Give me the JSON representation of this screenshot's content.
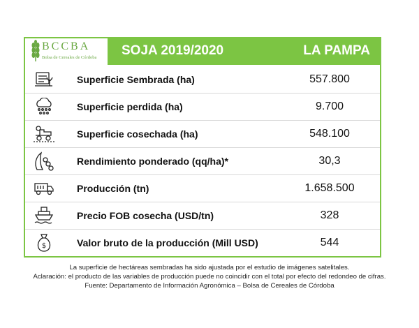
{
  "logo": {
    "name": "BCCBA",
    "subtitle": "Bolsa de Cereales de Córdoba"
  },
  "header": {
    "title": "SOJA 2019/2020",
    "region": "LA PAMPA"
  },
  "rows": [
    {
      "icon": "planting-icon",
      "label": "Superficie Sembrada (ha)",
      "value": "557.800"
    },
    {
      "icon": "hail-cloud-icon",
      "label": "Superficie perdida (ha)",
      "value": "9.700"
    },
    {
      "icon": "harvester-icon",
      "label": "Superficie cosechada (ha)",
      "value": "548.100"
    },
    {
      "icon": "soybean-icon",
      "label": "Rendimiento ponderado (qq/ha)*",
      "value": "30,3"
    },
    {
      "icon": "truck-icon",
      "label": "Producción (tn)",
      "value": "1.658.500"
    },
    {
      "icon": "ship-icon",
      "label": "Precio FOB cosecha (USD/tn)",
      "value": "328"
    },
    {
      "icon": "money-bag-icon",
      "label": "Valor bruto de la producción (Mill USD)",
      "value": "544"
    }
  ],
  "notes": [
    "La superficie de hectáreas sembradas ha sido ajustada por el estudio de imágenes satelitales.",
    "Aclaración: el producto de las variables de producción puede no coincidir con el total por efecto del redondeo de cifras.",
    "Fuente: Departamento de Información Agronómica – Bolsa de Cereales de Córdoba"
  ],
  "colors": {
    "accent": "#7cc543",
    "text": "#111111"
  }
}
